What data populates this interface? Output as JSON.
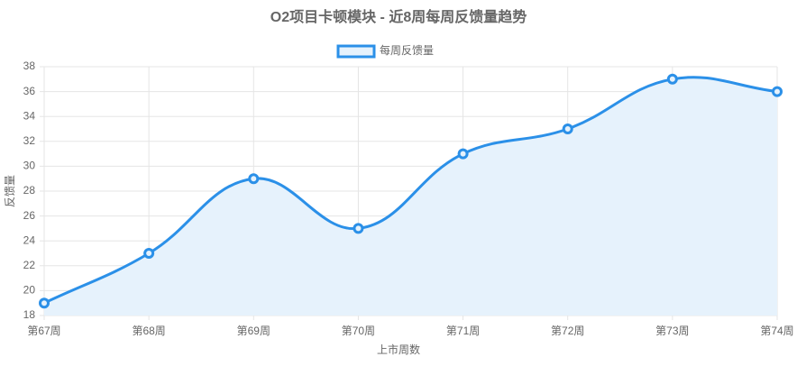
{
  "chart_data": {
    "type": "line",
    "title": "O2项目卡顿模块 - 近8周每周反馈量趋势",
    "x_label": "上市周数",
    "y_label": "反馈量",
    "categories": [
      "第67周",
      "第68周",
      "第69周",
      "第70周",
      "第71周",
      "第72周",
      "第73周",
      "第74周"
    ],
    "series": [
      {
        "name": "每周反馈量",
        "color": "#2b90e8",
        "fill": "#e6f2fc",
        "values": [
          19,
          23,
          29,
          25,
          31,
          33,
          37,
          36
        ]
      }
    ],
    "ylim": [
      18,
      38
    ],
    "yticks": [
      18,
      20,
      22,
      24,
      26,
      28,
      30,
      32,
      34,
      36,
      38
    ],
    "grid": true,
    "smooth": true,
    "legend": "top"
  }
}
